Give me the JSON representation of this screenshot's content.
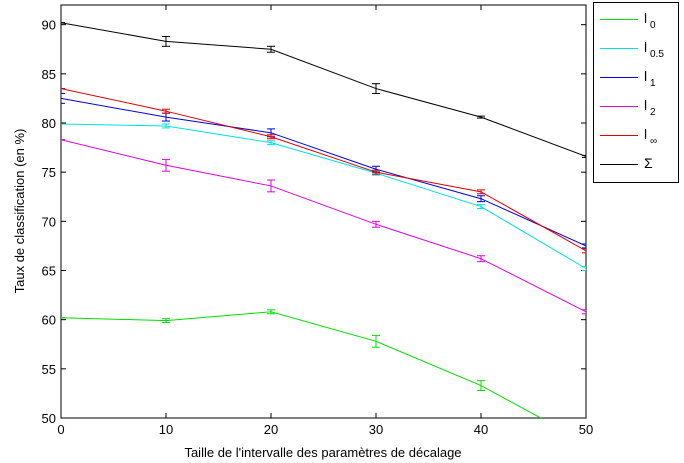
{
  "chart_data": {
    "type": "line",
    "xlabel": "Taille de l'intervalle des paramètres de décalage",
    "ylabel": "Taux de classification (en %)",
    "xlim": [
      0,
      50
    ],
    "ylim": [
      50,
      92
    ],
    "xticks": [
      0,
      10,
      20,
      30,
      40,
      50
    ],
    "yticks": [
      50,
      55,
      60,
      65,
      70,
      75,
      80,
      85,
      90
    ],
    "grid": false,
    "legend_position": "outside-top-right",
    "x": [
      0,
      10,
      20,
      30,
      40,
      50
    ],
    "series": [
      {
        "name": "l0",
        "label": "l",
        "sub": "0",
        "color": "#00e000",
        "values": [
          60.2,
          59.9,
          60.8,
          57.8,
          53.3,
          47.5
        ],
        "errors": [
          0.0,
          0.2,
          0.2,
          0.6,
          0.5,
          0.0
        ]
      },
      {
        "name": "l0.5",
        "label": "l",
        "sub": "0.5",
        "color": "#00e0e0",
        "values": [
          79.9,
          79.7,
          78.0,
          74.9,
          71.5,
          65.2
        ],
        "errors": [
          0.0,
          0.2,
          0.2,
          0.2,
          0.2,
          0.2
        ]
      },
      {
        "name": "l1",
        "label": "l",
        "sub": "1",
        "color": "#0000e0",
        "values": [
          82.5,
          80.6,
          79.0,
          75.3,
          72.3,
          67.5
        ],
        "errors": [
          0.5,
          0.4,
          0.4,
          0.3,
          0.3,
          0.2
        ]
      },
      {
        "name": "l2",
        "label": "l",
        "sub": "2",
        "color": "#e000e0",
        "values": [
          78.3,
          75.7,
          73.6,
          69.7,
          66.2,
          60.8
        ],
        "errors": [
          0.0,
          0.6,
          0.6,
          0.3,
          0.3,
          0.2
        ]
      },
      {
        "name": "l∞",
        "label": "l",
        "sub": "∞",
        "color": "#e00000",
        "values": [
          83.5,
          81.2,
          78.6,
          75.0,
          73.0,
          67.0
        ],
        "errors": [
          0.0,
          0.2,
          0.2,
          0.2,
          0.2,
          0.2
        ]
      },
      {
        "name": "Σ",
        "label": "Σ",
        "sub": "",
        "color": "#000000",
        "values": [
          90.2,
          88.3,
          87.5,
          83.5,
          80.6,
          76.6
        ],
        "errors": [
          0.0,
          0.5,
          0.3,
          0.5,
          0.1,
          0.1
        ]
      }
    ]
  }
}
